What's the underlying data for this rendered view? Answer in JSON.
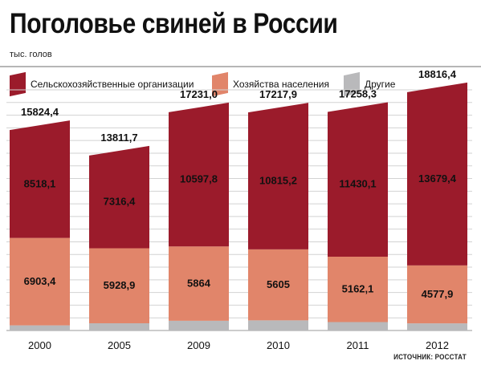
{
  "header": {
    "title": "Поголовье свиней в России",
    "subtitle": "тыс. голов"
  },
  "legend": [
    {
      "label": "Сельскохозяйственные организации",
      "color": "#9b1b2b"
    },
    {
      "label": "Хозяйства населения",
      "color": "#e1856a"
    },
    {
      "label": "Другие",
      "color": "#b9b9bb"
    }
  ],
  "source": "ИСТОЧНИК: РОССТАТ",
  "chart_data": {
    "type": "bar",
    "stacked": true,
    "categories": [
      "2000",
      "2005",
      "2009",
      "2010",
      "2011",
      "2012"
    ],
    "series": [
      {
        "name": "Другие",
        "values": [
          402.9,
          566.4,
          769.2,
          797.7,
          666.1,
          559.1
        ],
        "color": "#b9b9bb"
      },
      {
        "name": "Хозяйства населения",
        "values": [
          6903.4,
          5928.9,
          5864,
          5605,
          5162.1,
          4577.9
        ],
        "labels": [
          "6903,4",
          "5928,9",
          "5864",
          "5605",
          "5162,1",
          "4577,9"
        ],
        "color": "#e1856a"
      },
      {
        "name": "Сельскохозяйственные организации",
        "values": [
          8518.1,
          7316.4,
          10597.8,
          10815.2,
          11430.1,
          13679.4
        ],
        "labels": [
          "8518,1",
          "7316,4",
          "10597,8",
          "10815,2",
          "11430,1",
          "13679,4"
        ],
        "color": "#9b1b2b"
      }
    ],
    "totals": [
      15824.4,
      13811.7,
      17231.0,
      17217.9,
      17258.3,
      18816.4
    ],
    "total_labels": [
      "15824,4",
      "13811,7",
      "17231,0",
      "17217,9",
      "17258,3",
      "18816,4"
    ],
    "ylim": [
      0,
      19000
    ],
    "grid": true,
    "legend_position": "top"
  }
}
